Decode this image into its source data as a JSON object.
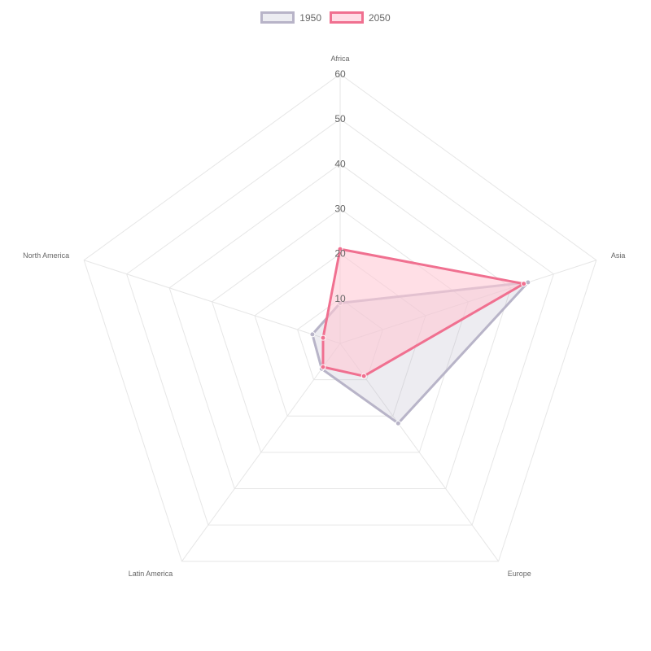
{
  "chart_data": {
    "type": "radar",
    "labels": [
      "Africa",
      "Asia",
      "Europe",
      "Latin America",
      "North America"
    ],
    "r_ticks": [
      10,
      20,
      30,
      40,
      50,
      60
    ],
    "r_range": [
      0,
      60
    ],
    "legend_position": "top",
    "series": [
      {
        "name": "1950",
        "values": [
          9.0,
          44.0,
          22.0,
          7.0,
          6.5
        ],
        "stroke": "#b8b4c8",
        "fill": "#b8b4c8",
        "fill_opacity": 0.25
      },
      {
        "name": "2050",
        "values": [
          21.0,
          43.0,
          9.0,
          6.5,
          4.0
        ],
        "stroke": "#f07090",
        "fill": "#ffc9d6",
        "fill_opacity": 0.6
      }
    ]
  },
  "colors": {
    "grid": "#e6e6e6",
    "text": "#666666"
  }
}
